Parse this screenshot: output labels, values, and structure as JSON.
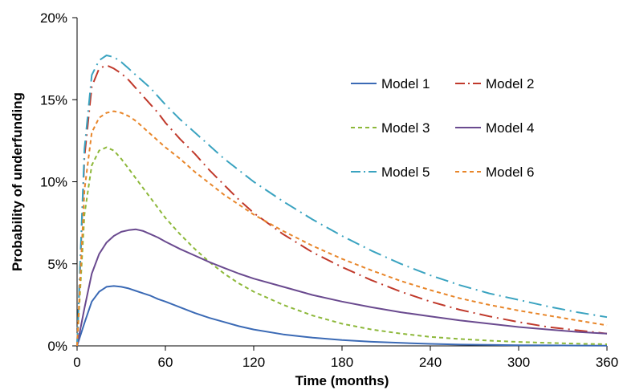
{
  "chart_data": {
    "type": "line",
    "title": "",
    "xlabel": "Time (months)",
    "ylabel": "Probability of underfunding",
    "xlim": [
      0,
      360
    ],
    "ylim": [
      0,
      20
    ],
    "x_ticks": [
      0,
      60,
      120,
      180,
      240,
      300,
      360
    ],
    "y_ticks": [
      0,
      5,
      10,
      15,
      20
    ],
    "y_tick_labels": [
      "0%",
      "5%",
      "10%",
      "15%",
      "20%"
    ],
    "grid": false,
    "legend_position": "upper-right inside plot",
    "x": [
      0,
      5,
      10,
      15,
      20,
      25,
      30,
      35,
      40,
      45,
      50,
      55,
      60,
      70,
      80,
      90,
      100,
      110,
      120,
      140,
      160,
      180,
      200,
      220,
      240,
      260,
      280,
      300,
      320,
      340,
      360
    ],
    "series": [
      {
        "name": "Model 1",
        "color": "#3b6ab5",
        "dash": "solid",
        "values": [
          0,
          1.4,
          2.7,
          3.3,
          3.6,
          3.65,
          3.6,
          3.5,
          3.35,
          3.2,
          3.05,
          2.85,
          2.7,
          2.35,
          2.0,
          1.7,
          1.45,
          1.2,
          1.0,
          0.7,
          0.5,
          0.35,
          0.25,
          0.18,
          0.12,
          0.08,
          0.06,
          0.04,
          0.03,
          0.02,
          0.01
        ]
      },
      {
        "name": "Model 2",
        "color": "#c0392b",
        "dash": "longdash-dot",
        "values": [
          0,
          11.5,
          15.8,
          16.9,
          17.1,
          16.9,
          16.6,
          16.2,
          15.7,
          15.2,
          14.7,
          14.2,
          13.6,
          12.6,
          11.7,
          10.7,
          9.8,
          8.9,
          8.1,
          6.8,
          5.7,
          4.8,
          4.0,
          3.3,
          2.7,
          2.2,
          1.8,
          1.45,
          1.15,
          0.95,
          0.75
        ]
      },
      {
        "name": "Model 3",
        "color": "#8db83a",
        "dash": "dashed",
        "values": [
          0,
          8.0,
          11.0,
          11.9,
          12.1,
          11.9,
          11.4,
          10.8,
          10.2,
          9.6,
          9.0,
          8.4,
          7.8,
          6.8,
          5.9,
          5.1,
          4.4,
          3.8,
          3.3,
          2.5,
          1.85,
          1.35,
          1.0,
          0.75,
          0.55,
          0.42,
          0.32,
          0.24,
          0.18,
          0.13,
          0.1
        ]
      },
      {
        "name": "Model 4",
        "color": "#6a4a8f",
        "dash": "solid",
        "values": [
          0,
          2.3,
          4.4,
          5.6,
          6.3,
          6.7,
          6.95,
          7.05,
          7.1,
          7.0,
          6.8,
          6.6,
          6.35,
          5.9,
          5.5,
          5.1,
          4.75,
          4.4,
          4.1,
          3.6,
          3.1,
          2.7,
          2.35,
          2.05,
          1.8,
          1.55,
          1.35,
          1.15,
          1.0,
          0.85,
          0.75
        ]
      },
      {
        "name": "Model 5",
        "color": "#3aa3c0",
        "dash": "longdash-dot",
        "values": [
          0,
          12.0,
          16.5,
          17.4,
          17.7,
          17.6,
          17.3,
          16.9,
          16.5,
          16.1,
          15.7,
          15.2,
          14.7,
          13.8,
          13.0,
          12.2,
          11.4,
          10.7,
          10.0,
          8.8,
          7.7,
          6.7,
          5.8,
          5.0,
          4.3,
          3.7,
          3.2,
          2.8,
          2.4,
          2.05,
          1.75
        ]
      },
      {
        "name": "Model 6",
        "color": "#e8862a",
        "dash": "dashed",
        "values": [
          0,
          9.5,
          13.0,
          13.9,
          14.2,
          14.3,
          14.2,
          14.0,
          13.7,
          13.3,
          12.9,
          12.5,
          12.1,
          11.4,
          10.6,
          9.9,
          9.2,
          8.6,
          8.0,
          7.0,
          6.1,
          5.3,
          4.6,
          3.95,
          3.4,
          2.9,
          2.5,
          2.15,
          1.85,
          1.55,
          1.25
        ]
      }
    ]
  }
}
